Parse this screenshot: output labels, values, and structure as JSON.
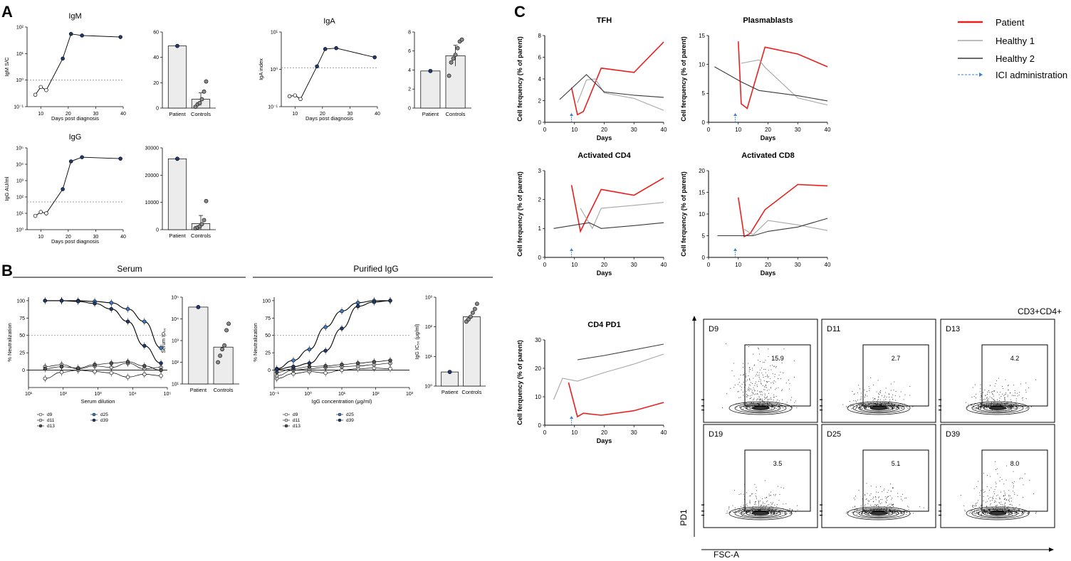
{
  "figure": {
    "panel_labels": {
      "a": "A",
      "b": "B",
      "c": "C"
    },
    "b_section_titles": {
      "serum": "Serum",
      "purified": "Purified IgG"
    },
    "c_legend": [
      {
        "label": "Patient",
        "color": "#e8211f",
        "style": "solid"
      },
      {
        "label": "Healthy 1",
        "color": "#a6a6a6",
        "style": "solid"
      },
      {
        "label": "Healthy 2",
        "color": "#3a3a3a",
        "style": "solid"
      },
      {
        "label": "ICI administration",
        "color": "#3d7fd0",
        "style": "arrow"
      }
    ],
    "flow": {
      "gate_title": "CD3+CD4+",
      "y_label": "PD1",
      "x_label": "FSC-A",
      "panels": [
        {
          "day": "D9",
          "value": "15.9"
        },
        {
          "day": "D11",
          "value": "2.7"
        },
        {
          "day": "D13",
          "value": "4.2"
        },
        {
          "day": "D19",
          "value": "3.5"
        },
        {
          "day": "D25",
          "value": "5.1"
        },
        {
          "day": "D39",
          "value": "8.0"
        }
      ]
    }
  },
  "chart_data": [
    {
      "id": "igm_line",
      "type": "line",
      "title": "IgM",
      "xlabel": "Days post diagnosis",
      "ylabel": "IgM S/C",
      "yscale": "log",
      "xlim": [
        5,
        40
      ],
      "ylim_exp": [
        -1,
        2
      ],
      "xticks": [
        "10",
        "20",
        "30",
        "40"
      ],
      "yticks": [
        "10⁻¹",
        "10⁰",
        "10¹",
        "10²"
      ],
      "reference_y": 1,
      "x": [
        8,
        10,
        12,
        18,
        21,
        25,
        39
      ],
      "values": [
        0.28,
        0.55,
        0.42,
        6.5,
        55,
        48,
        42
      ]
    },
    {
      "id": "igm_bar",
      "type": "bar",
      "categories": [
        "Patient",
        "Controls"
      ],
      "values": [
        49,
        7
      ],
      "error": [
        null,
        5
      ],
      "ylim": [
        0,
        60
      ],
      "yticks": [
        "0",
        "20",
        "40",
        "60"
      ],
      "points": [
        [
          49
        ],
        [
          1,
          3,
          4,
          7,
          13,
          21
        ]
      ]
    },
    {
      "id": "iga_line",
      "type": "line",
      "title": "IgA",
      "xlabel": "Days post diagnosis",
      "ylabel": "IgA index",
      "yscale": "log",
      "xlim": [
        5,
        40
      ],
      "ylim_exp": [
        -1,
        1
      ],
      "xticks": [
        "10",
        "20",
        "30",
        "40"
      ],
      "yticks": [
        "10⁻¹",
        "10⁰",
        "10¹"
      ],
      "reference_y": 1.1,
      "x": [
        8,
        10,
        12,
        18,
        21,
        25,
        39
      ],
      "values": [
        0.19,
        0.2,
        0.16,
        1.2,
        3.5,
        3.7,
        2.1
      ]
    },
    {
      "id": "iga_bar",
      "type": "bar",
      "categories": [
        "Patient",
        "Controls"
      ],
      "values": [
        3.9,
        5.5
      ],
      "error": [
        null,
        1.1
      ],
      "ylim": [
        0,
        8
      ],
      "yticks": [
        "0",
        "2",
        "4",
        "6",
        "8"
      ],
      "points": [
        [
          3.9
        ],
        [
          3.4,
          4.8,
          5.2,
          5.6,
          6.3,
          7.0,
          7.2
        ]
      ]
    },
    {
      "id": "igg_line",
      "type": "line",
      "title": "IgG",
      "xlabel": "Days post diagnosis",
      "ylabel": "IgG AU/ml",
      "yscale": "log",
      "xlim": [
        5,
        40
      ],
      "ylim_exp": [
        0,
        5
      ],
      "xticks": [
        "10",
        "20",
        "30",
        "40"
      ],
      "yticks": [
        "10⁰",
        "10¹",
        "10²",
        "10³",
        "10⁴",
        "10⁵"
      ],
      "reference_y": 50,
      "x": [
        8,
        10,
        12,
        18,
        21,
        25,
        39
      ],
      "values": [
        7,
        12,
        10,
        300,
        15000,
        27000,
        22000
      ]
    },
    {
      "id": "igg_bar",
      "type": "bar",
      "categories": [
        "Patient",
        "Controls"
      ],
      "values": [
        26000,
        2200
      ],
      "error": [
        null,
        3000
      ],
      "ylim": [
        0,
        30000
      ],
      "yticks": [
        "0",
        "10000",
        "20000",
        "30000"
      ],
      "points": [
        [
          26000
        ],
        [
          500,
          800,
          1200,
          2000,
          3500,
          10500
        ]
      ]
    },
    {
      "id": "serum_neut",
      "type": "scatter",
      "xlabel": "Serum dilution",
      "ylabel": "% Neutralization",
      "xscale": "log",
      "xlim_exp": [
        1,
        5
      ],
      "ylim": [
        -25,
        105
      ],
      "xticks": [
        "10¹",
        "10²",
        "10³",
        "10⁴",
        "10⁵"
      ],
      "yticks": [
        "0",
        "25",
        "50",
        "75",
        "100"
      ],
      "reference_y": 50,
      "x": [
        30,
        90,
        270,
        810,
        2430,
        7290,
        21870,
        65610
      ],
      "series": [
        {
          "name": "d9",
          "values": [
            -12,
            -3,
            0,
            -2,
            -4,
            -10,
            -6,
            -8
          ]
        },
        {
          "name": "d11",
          "values": [
            5,
            8,
            2,
            6,
            4,
            10,
            2,
            4
          ]
        },
        {
          "name": "d13",
          "values": [
            2,
            5,
            3,
            8,
            10,
            12,
            6,
            0
          ]
        },
        {
          "name": "d25",
          "values": [
            100,
            100,
            100,
            99,
            97,
            88,
            70,
            32
          ]
        },
        {
          "name": "d39",
          "values": [
            100,
            100,
            99,
            96,
            88,
            70,
            35,
            10
          ]
        }
      ]
    },
    {
      "id": "serum_id50",
      "type": "bar",
      "ylabel": "Serum ID₅₀",
      "yscale": "log",
      "categories": [
        "Patient",
        "Controls"
      ],
      "values": [
        35000,
        500
      ],
      "ylim_exp": [
        1,
        5
      ],
      "yticks": [
        "10¹",
        "10²",
        "10³",
        "10⁴",
        "10⁵"
      ],
      "points": [
        [
          35000
        ],
        [
          100,
          200,
          400,
          600,
          3000,
          6000
        ]
      ]
    },
    {
      "id": "igg_neut",
      "type": "scatter",
      "xlabel": "IgG concentration (μg/ml)",
      "ylabel": "% Neutralization",
      "xscale": "log",
      "xlim_exp": [
        -1,
        3
      ],
      "ylim": [
        -25,
        105
      ],
      "xticks": [
        "10⁻¹",
        "10⁰",
        "10¹",
        "10²",
        "10³"
      ],
      "yticks": [
        "0",
        "25",
        "50",
        "75",
        "100"
      ],
      "reference_y": 50,
      "x": [
        0.12,
        0.37,
        1.1,
        3.3,
        10,
        30,
        90,
        270
      ],
      "series": [
        {
          "name": "d9",
          "values": [
            -12,
            -5,
            -2,
            -4,
            0,
            2,
            3,
            2
          ]
        },
        {
          "name": "d11",
          "values": [
            -8,
            0,
            2,
            4,
            5,
            6,
            8,
            10
          ]
        },
        {
          "name": "d13",
          "values": [
            -3,
            2,
            5,
            6,
            8,
            10,
            12,
            14
          ]
        },
        {
          "name": "d25",
          "values": [
            2,
            14,
            30,
            62,
            85,
            97,
            100,
            100
          ]
        },
        {
          "name": "d39",
          "values": [
            1,
            5,
            10,
            28,
            60,
            92,
            98,
            100
          ]
        }
      ]
    },
    {
      "id": "igg_ic50",
      "type": "bar",
      "ylabel": "IgG IC₅₀ (μg/ml)",
      "yscale": "log",
      "categories": [
        "Patient",
        "Controls"
      ],
      "values": [
        3,
        220
      ],
      "ylim_exp": [
        0,
        3
      ],
      "yticks": [
        "10⁰",
        "10¹",
        "10²",
        "10³"
      ],
      "points": [
        [
          3
        ],
        [
          150,
          180,
          220,
          300,
          400,
          600
        ]
      ]
    },
    {
      "id": "tfh",
      "type": "line",
      "title": "TFH",
      "xlabel": "Days",
      "ylabel": "Cell ferquency (% of parent)",
      "xlim": [
        0,
        40
      ],
      "ylim": [
        0,
        8
      ],
      "xticks": [
        "0",
        "10",
        "20",
        "30",
        "40"
      ],
      "yticks": [
        "0",
        "2",
        "4",
        "6",
        "8"
      ],
      "ici_day": 9,
      "series": [
        {
          "name": "Patient",
          "x": [
            9,
            11,
            13,
            19,
            30,
            40
          ],
          "values": [
            3.2,
            0.7,
            1.0,
            5.0,
            4.6,
            7.4
          ]
        },
        {
          "name": "Healthy 1",
          "x": [
            11,
            14,
            17,
            20,
            30,
            40
          ],
          "values": [
            1.8,
            3.9,
            4.0,
            2.7,
            2.2,
            1.1
          ]
        },
        {
          "name": "Healthy 2",
          "x": [
            5,
            14,
            20,
            30,
            40
          ],
          "values": [
            2.1,
            4.4,
            2.8,
            2.5,
            2.3
          ]
        }
      ]
    },
    {
      "id": "plasmablasts",
      "type": "line",
      "title": "Plasmablasts",
      "xlabel": "Days",
      "ylabel": "Cell ferquency (% of parent)",
      "xlim": [
        0,
        40
      ],
      "ylim": [
        0,
        15
      ],
      "xticks": [
        "0",
        "10",
        "20",
        "30",
        "40"
      ],
      "yticks": [
        "0",
        "5",
        "10",
        "15"
      ],
      "ici_day": 9,
      "series": [
        {
          "name": "Patient",
          "x": [
            10,
            11,
            13,
            19,
            30,
            40
          ],
          "values": [
            14,
            3.2,
            2.4,
            13,
            11.8,
            9.6
          ]
        },
        {
          "name": "Healthy 1",
          "x": [
            11,
            17,
            19,
            30,
            40
          ],
          "values": [
            10.2,
            10.8,
            9.5,
            4.2,
            3.0
          ]
        },
        {
          "name": "Healthy 2",
          "x": [
            2,
            11,
            17,
            20,
            30,
            40
          ],
          "values": [
            9.6,
            7.0,
            5.5,
            5.3,
            4.6,
            3.7
          ]
        }
      ]
    },
    {
      "id": "act_cd4",
      "type": "line",
      "title": "Activated CD4",
      "xlabel": "Days",
      "ylabel": "Cell ferquency (% of parent)",
      "xlim": [
        0,
        40
      ],
      "ylim": [
        0,
        3
      ],
      "xticks": [
        "0",
        "10",
        "20",
        "30",
        "40"
      ],
      "yticks": [
        "0",
        "1",
        "2",
        "3"
      ],
      "ici_day": 9,
      "series": [
        {
          "name": "Patient",
          "x": [
            9,
            12,
            19,
            30,
            40
          ],
          "values": [
            2.5,
            0.9,
            2.35,
            2.15,
            2.75
          ]
        },
        {
          "name": "Healthy 1",
          "x": [
            12,
            16,
            19,
            30,
            40
          ],
          "values": [
            1.7,
            1.0,
            1.7,
            1.8,
            1.9
          ]
        },
        {
          "name": "Healthy 2",
          "x": [
            3,
            15,
            19,
            30,
            40
          ],
          "values": [
            1.0,
            1.2,
            1.0,
            1.1,
            1.2
          ]
        }
      ]
    },
    {
      "id": "act_cd8",
      "type": "line",
      "title": "Activated CD8",
      "xlabel": "Days",
      "ylabel": "Cell ferquency (% of parent)",
      "xlim": [
        0,
        40
      ],
      "ylim": [
        0,
        20
      ],
      "xticks": [
        "0",
        "10",
        "20",
        "30",
        "40"
      ],
      "yticks": [
        "0",
        "5",
        "10",
        "15",
        "20"
      ],
      "ici_day": 9,
      "series": [
        {
          "name": "Patient",
          "x": [
            10,
            12,
            14,
            19,
            30,
            40
          ],
          "values": [
            13.8,
            4.8,
            5.5,
            11,
            16.8,
            16.5
          ]
        },
        {
          "name": "Healthy 1",
          "x": [
            12,
            15,
            20,
            30,
            40
          ],
          "values": [
            6.5,
            5.2,
            8.5,
            7.5,
            6.2
          ]
        },
        {
          "name": "Healthy 2",
          "x": [
            3,
            15,
            20,
            30,
            40
          ],
          "values": [
            5.0,
            5.0,
            6.0,
            7.0,
            9.0
          ]
        }
      ]
    },
    {
      "id": "cd4_pd1",
      "type": "line",
      "title": "CD4 PD1",
      "xlabel": "Days",
      "ylabel": "Cell ferquency (% of parent)",
      "xlim": [
        0,
        40
      ],
      "ylim": [
        0,
        30
      ],
      "xticks": [
        "0",
        "10",
        "20",
        "30",
        "40"
      ],
      "yticks": [
        "0",
        "10",
        "20",
        "30"
      ],
      "ici_day": 9,
      "series": [
        {
          "name": "Patient",
          "x": [
            8,
            11,
            13,
            19,
            30,
            40
          ],
          "values": [
            15,
            3,
            4.2,
            3.5,
            5.1,
            8.0
          ]
        },
        {
          "name": "Healthy 1",
          "x": [
            3,
            6,
            11,
            20,
            30,
            40
          ],
          "values": [
            9,
            16.5,
            15.5,
            18.5,
            21.5,
            25
          ]
        },
        {
          "name": "Healthy 2",
          "x": [
            11,
            20,
            30,
            40
          ],
          "values": [
            23,
            24.5,
            26.5,
            28.5
          ]
        }
      ]
    }
  ]
}
